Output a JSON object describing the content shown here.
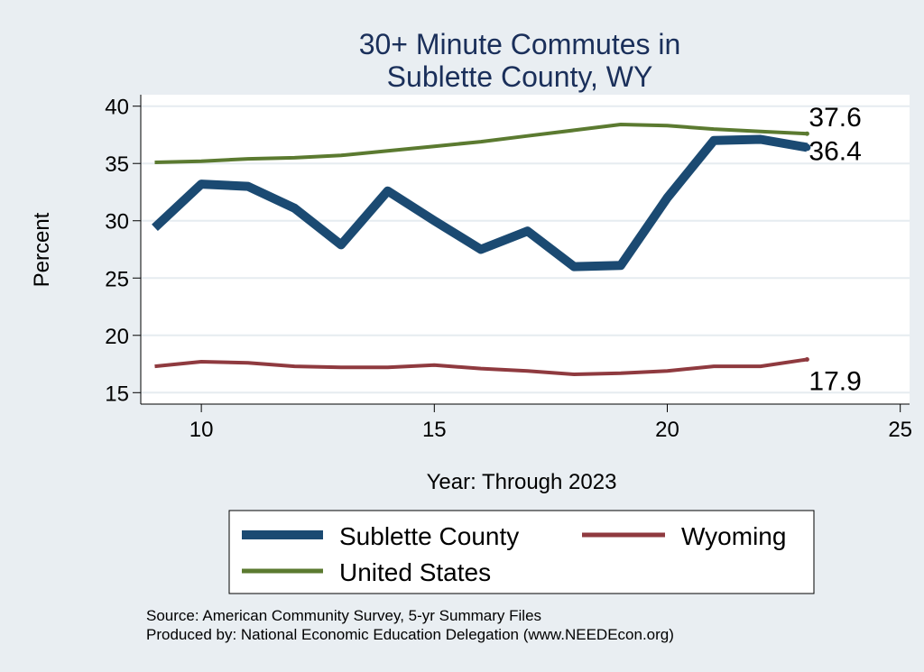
{
  "chart_data": {
    "type": "line",
    "title": [
      "30+ Minute Commutes in",
      "Sublette County, WY"
    ],
    "xlabel": "Year: Through 2023",
    "ylabel": "Percent",
    "xlim": [
      8.7,
      25.2
    ],
    "ylim": [
      14,
      41
    ],
    "xticks": [
      10,
      15,
      20,
      25
    ],
    "yticks": [
      15,
      20,
      25,
      30,
      35,
      40
    ],
    "grid": true,
    "x": [
      9,
      10,
      11,
      12,
      13,
      14,
      15,
      16,
      17,
      18,
      19,
      20,
      21,
      22,
      23
    ],
    "series": [
      {
        "name": "Sublette County",
        "color": "#1b4a72",
        "values": [
          29.4,
          33.2,
          33.0,
          31.1,
          27.9,
          32.6,
          30.0,
          27.5,
          29.1,
          26.0,
          26.1,
          32.0,
          37.0,
          37.1,
          36.4
        ],
        "end_label": "36.4"
      },
      {
        "name": "Wyoming",
        "color": "#8f3a3f",
        "values": [
          17.3,
          17.7,
          17.6,
          17.3,
          17.2,
          17.2,
          17.4,
          17.1,
          16.9,
          16.6,
          16.7,
          16.9,
          17.3,
          17.3,
          17.9
        ],
        "end_label": "17.9"
      },
      {
        "name": "United States",
        "color": "#5b7a30",
        "values": [
          35.1,
          35.2,
          35.4,
          35.5,
          35.7,
          36.1,
          36.5,
          36.9,
          37.4,
          37.9,
          38.4,
          38.3,
          38.0,
          37.8,
          37.6
        ],
        "end_label": "37.6"
      }
    ],
    "legend": {
      "placement": "bottom",
      "items": [
        "Sublette County",
        "Wyoming",
        "United States"
      ]
    },
    "notes": [
      "Source: American Community Survey, 5-yr Summary Files",
      "Produced by: National Economic Education Delegation (www.NEEDEcon.org)"
    ]
  }
}
